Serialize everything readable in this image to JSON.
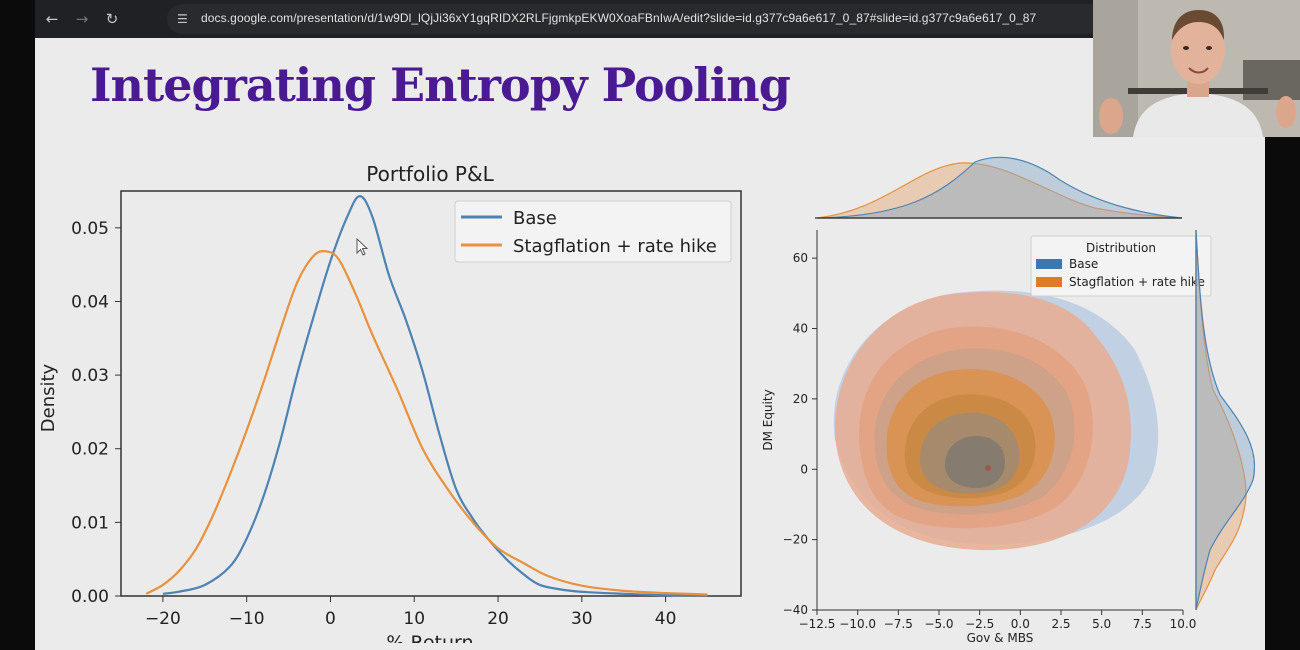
{
  "browser": {
    "url": "docs.google.com/presentation/d/1w9Dl_lQjJi36xY1gqRIDX2RLFjgmkpEKW0XoaFBnIwA/edit?slide=id.g377c9a6e617_0_87#slide=id.g377c9a6e617_0_87",
    "icons": [
      "back-icon",
      "forward-icon",
      "reload-icon",
      "site-info-icon",
      "zoom-icon",
      "star-icon"
    ]
  },
  "slide": {
    "title": "Integrating Entropy Pooling",
    "title_color": "#4a1a92"
  },
  "colors": {
    "base": "#4c82b4",
    "stagflation": "#e9913d"
  },
  "chart_data": [
    {
      "type": "line",
      "title": "Portfolio P&L",
      "xlabel": "% Return",
      "ylabel": "Density",
      "xlim": [
        -25,
        49
      ],
      "ylim": [
        0,
        0.055
      ],
      "xticks": [
        "−20",
        "−10",
        "0",
        "10",
        "20",
        "30",
        "40"
      ],
      "xtick_values": [
        -20,
        -10,
        0,
        10,
        20,
        30,
        40
      ],
      "yticks": [
        "0.00",
        "0.01",
        "0.02",
        "0.03",
        "0.04",
        "0.05"
      ],
      "ytick_values": [
        0,
        0.01,
        0.02,
        0.03,
        0.04,
        0.05
      ],
      "legend": [
        "Base",
        "Stagflation + rate hike"
      ],
      "legend_position": "top-right",
      "series": [
        {
          "name": "Base",
          "x": [
            -20,
            -18,
            -15,
            -12,
            -10,
            -8,
            -6,
            -4,
            -2,
            0,
            2,
            3.5,
            5,
            7,
            9,
            11,
            13,
            15,
            17,
            19,
            21,
            23,
            25,
            28,
            31,
            35,
            40,
            45
          ],
          "y": [
            0.0003,
            0.0006,
            0.0015,
            0.004,
            0.0078,
            0.0135,
            0.021,
            0.03,
            0.038,
            0.0455,
            0.0515,
            0.0543,
            0.0515,
            0.0435,
            0.0375,
            0.0305,
            0.022,
            0.0145,
            0.0105,
            0.0075,
            0.005,
            0.003,
            0.0015,
            0.0008,
            0.0005,
            0.0003,
            0.0001,
            0.0001
          ]
        },
        {
          "name": "Stagflation + rate hike",
          "x": [
            -22,
            -20,
            -18,
            -16,
            -14,
            -12,
            -10,
            -8,
            -6,
            -4,
            -2,
            -0.5,
            1,
            3,
            5,
            8,
            11,
            14,
            17,
            20,
            23,
            26,
            30,
            35,
            40,
            45
          ],
          "y": [
            0.0003,
            0.0015,
            0.0035,
            0.0065,
            0.011,
            0.0165,
            0.0225,
            0.029,
            0.036,
            0.0425,
            0.0462,
            0.0468,
            0.0457,
            0.041,
            0.0355,
            0.028,
            0.02,
            0.0145,
            0.01,
            0.0065,
            0.0045,
            0.0027,
            0.0014,
            0.0007,
            0.0004,
            0.0002
          ]
        }
      ]
    },
    {
      "type": "scatter",
      "title": "",
      "xlabel": "Gov & MBS",
      "ylabel": "DM Equity",
      "xlim": [
        -12.5,
        10.0
      ],
      "ylim": [
        -40,
        68
      ],
      "xticks": [
        "−12.5",
        "−10.0",
        "−7.5",
        "−5.0",
        "−2.5",
        "0.0",
        "2.5",
        "5.0",
        "7.5",
        "10.0"
      ],
      "xtick_values": [
        -12.5,
        -10,
        -7.5,
        -5,
        -2.5,
        0,
        2.5,
        5,
        7.5,
        10
      ],
      "yticks": [
        "−40",
        "−20",
        "0",
        "20",
        "40",
        "60"
      ],
      "ytick_values": [
        -40,
        -20,
        0,
        20,
        40,
        60
      ],
      "legend_title": "Distribution",
      "legend": [
        "Base",
        "Stagflation + rate hike"
      ],
      "legend_position": "top-right",
      "series": [
        {
          "name": "Base",
          "center": [
            -2.0,
            -3.0
          ]
        },
        {
          "name": "Stagflation + rate hike",
          "center": [
            -2.5,
            -5.0
          ]
        }
      ]
    }
  ]
}
